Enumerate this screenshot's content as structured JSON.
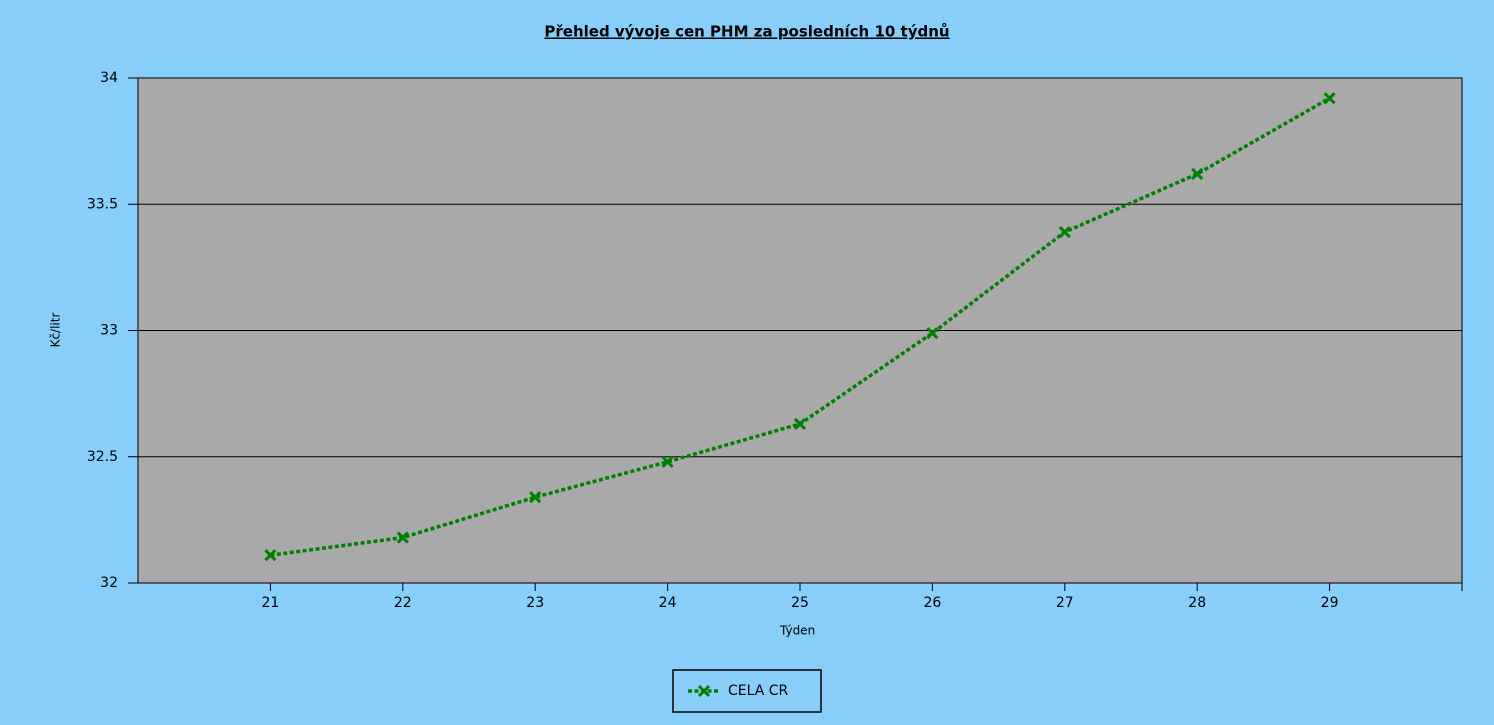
{
  "chart_data": {
    "type": "line",
    "title": "Přehled vývoje cen PHM za posledních 10 týdnů",
    "x_label": "Týden",
    "y_label": "Kč/litr",
    "x": [
      21,
      22,
      23,
      24,
      25,
      26,
      27,
      28,
      29
    ],
    "series": [
      {
        "name": "CELA CR",
        "color": "#008000",
        "values": [
          32.11,
          32.18,
          32.34,
          32.48,
          32.63,
          32.99,
          33.39,
          33.62,
          33.92
        ]
      }
    ],
    "xlim": [
      20,
      30
    ],
    "xticks": [
      21,
      22,
      23,
      24,
      25,
      26,
      27,
      28,
      29
    ],
    "ylim": [
      32,
      34
    ],
    "yticks": [
      32,
      32.5,
      33,
      33.5,
      34
    ],
    "grid": true,
    "legend": "bottom",
    "plot_background": "#a9a9a9"
  }
}
